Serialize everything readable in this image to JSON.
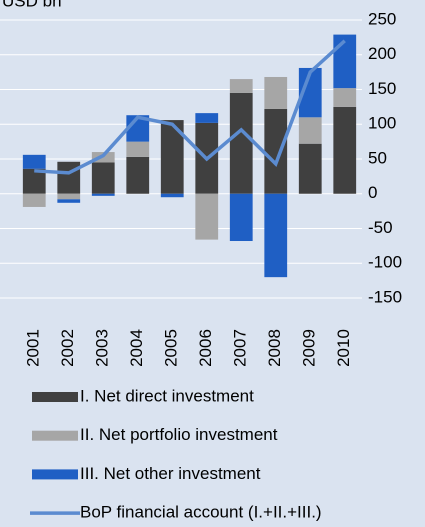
{
  "chart_data": {
    "type": "bar",
    "stacked": true,
    "y_label": "USD bn",
    "categories": [
      "2001",
      "2002",
      "2003",
      "2004",
      "2005",
      "2006",
      "2007",
      "2008",
      "2009",
      "2010"
    ],
    "series": [
      {
        "name": "I. Net direct investment",
        "color": "#404040",
        "values": [
          36,
          46,
          45,
          53,
          106,
          102,
          145,
          122,
          72,
          125
        ]
      },
      {
        "name": "II. Net portfolio investment",
        "color": "#a6a6a6",
        "values": [
          -19,
          -8,
          15,
          22,
          0,
          -66,
          20,
          46,
          38,
          27
        ]
      },
      {
        "name": "III. Net other investment",
        "color": "#1f5fc4",
        "values": [
          20,
          -5,
          -3,
          38,
          -5,
          14,
          -68,
          -120,
          71,
          77
        ]
      },
      {
        "name": "BoP financial account (I.+II.+III.)",
        "type": "line",
        "color": "#5b8bd0",
        "values": [
          33,
          30,
          55,
          110,
          100,
          50,
          92,
          43,
          175,
          220
        ]
      }
    ],
    "ylim": [
      -150,
      250
    ],
    "yticks": [
      250,
      200,
      150,
      100,
      50,
      0,
      -50,
      -100,
      -150
    ],
    "grid": true
  }
}
